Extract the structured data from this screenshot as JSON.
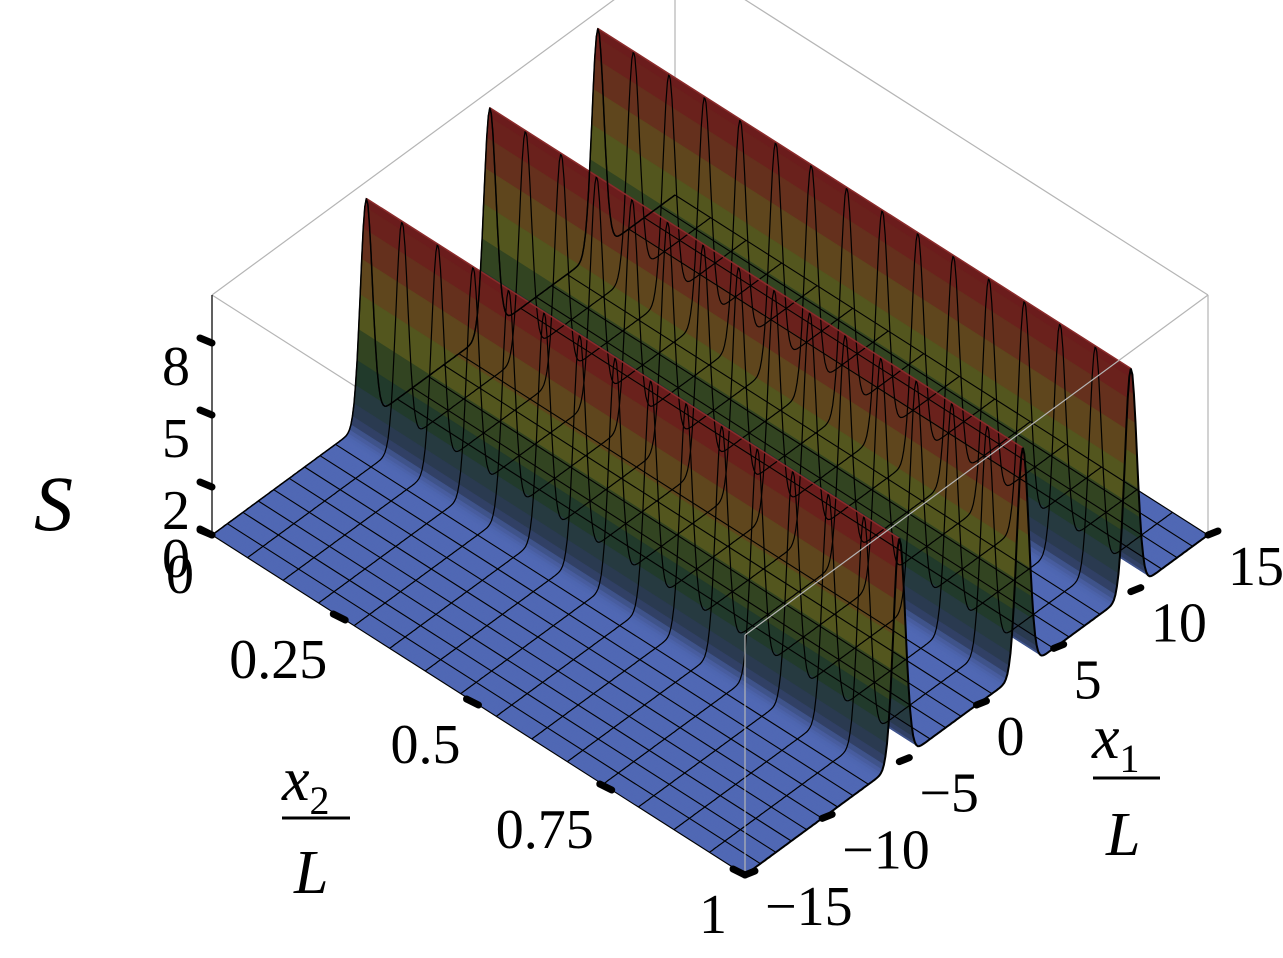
{
  "chart_data": {
    "type": "surface3d",
    "z_axis": {
      "label": "S",
      "ticks": [
        {
          "value": 0,
          "label": "0"
        },
        {
          "value": 2,
          "label": "2"
        },
        {
          "value": 5,
          "label": "5"
        },
        {
          "value": 8,
          "label": "8"
        }
      ],
      "range": [
        0,
        10
      ]
    },
    "x2_axis": {
      "label_num": "x",
      "label_sub": "2",
      "label_den": "L",
      "range": [
        0,
        1
      ],
      "ticks": [
        {
          "value": 0,
          "label": "0"
        },
        {
          "value": 0.25,
          "label": "0.25"
        },
        {
          "value": 0.5,
          "label": "0.5"
        },
        {
          "value": 0.75,
          "label": "0.75"
        },
        {
          "value": 1,
          "label": "1"
        }
      ]
    },
    "x1_axis": {
      "label_num": "x",
      "label_sub": "1",
      "label_den": "L",
      "range": [
        -15,
        15
      ],
      "ticks": [
        {
          "value": -15,
          "label": "−15"
        },
        {
          "value": -10,
          "label": "−10"
        },
        {
          "value": -5,
          "label": "−5"
        },
        {
          "value": 0,
          "label": "0"
        },
        {
          "value": 5,
          "label": "5"
        },
        {
          "value": 10,
          "label": "10"
        },
        {
          "value": 15,
          "label": "15"
        }
      ]
    },
    "ridges": [
      {
        "x1_center": -5.0,
        "peak": 9.3
      },
      {
        "x1_center": 3.0,
        "peak": 9.3
      },
      {
        "x1_center": 10.0,
        "peak": 9.3
      }
    ],
    "baseline": 0,
    "mesh_lines_x2": 15,
    "colors": {
      "base": "#5068b4",
      "low": "#2c3a58",
      "mid_low": "#1f3a22",
      "mid": "#5a5a1e",
      "high": "#6b1c1c",
      "mesh": "#000000",
      "box": "#b5b5b5"
    }
  }
}
